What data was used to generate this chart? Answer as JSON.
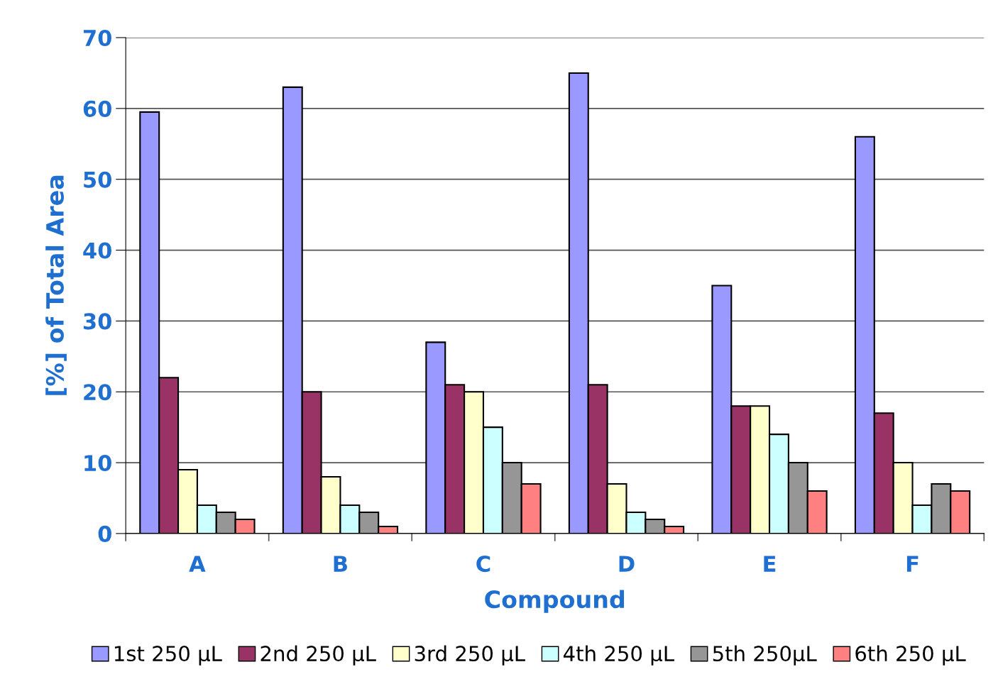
{
  "chart_data": {
    "type": "bar",
    "xlabel": "Compound",
    "ylabel": "[%] of Total Area",
    "categories": [
      "A",
      "B",
      "C",
      "D",
      "E",
      "F"
    ],
    "series": [
      {
        "name": "1st 250 µL",
        "color": "#9999ff",
        "values": [
          59.5,
          63,
          27,
          65,
          35,
          56
        ]
      },
      {
        "name": "2nd 250 µL",
        "color": "#993366",
        "values": [
          22,
          20,
          21,
          21,
          18,
          17
        ]
      },
      {
        "name": "3rd 250 µL",
        "color": "#ffffcc",
        "values": [
          9,
          8,
          20,
          7,
          18,
          10
        ]
      },
      {
        "name": "4th 250 µL",
        "color": "#ccffff",
        "values": [
          4,
          4,
          15,
          3,
          14,
          4
        ]
      },
      {
        "name": "5th 250µL",
        "color": "#969696",
        "values": [
          3,
          3,
          10,
          2,
          10,
          7
        ]
      },
      {
        "name": "6th 250 µL",
        "color": "#ff8080",
        "values": [
          2,
          1,
          7,
          1,
          6,
          6
        ]
      }
    ],
    "ylim": [
      0,
      70
    ],
    "yticks": [
      0,
      10,
      20,
      30,
      40,
      50,
      60,
      70
    ],
    "grid": "y",
    "legend": "bottom"
  }
}
